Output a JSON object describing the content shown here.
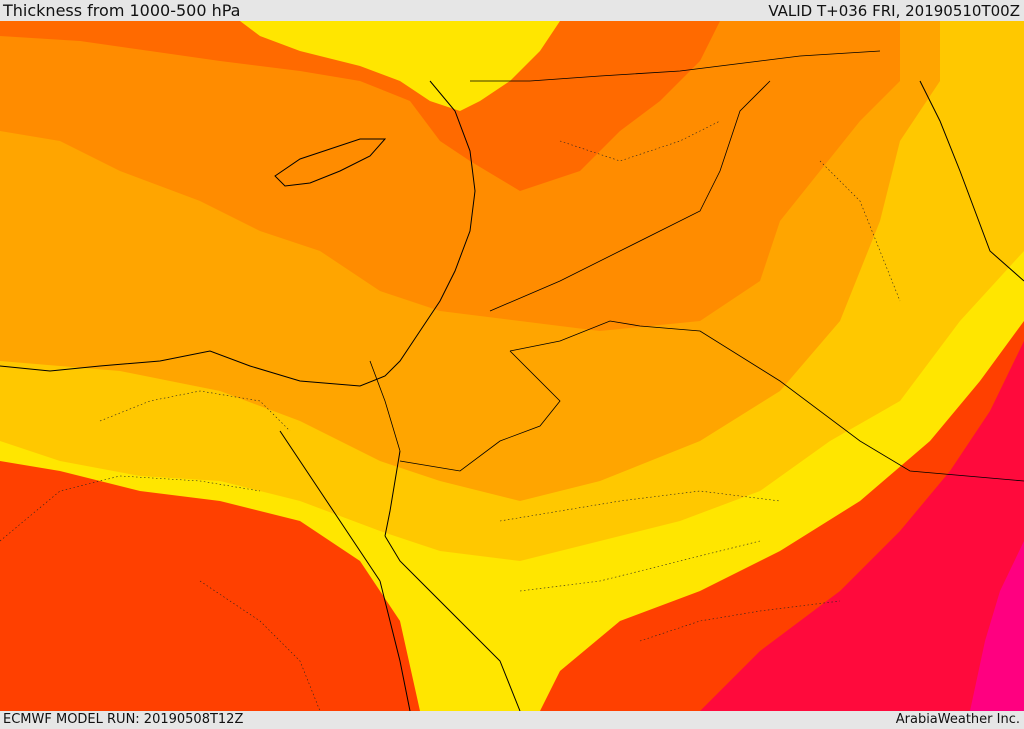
{
  "header": {
    "title": "Thickness from 1000-500 hPa",
    "valid": "VALID T+036 FRI, 20190510T00Z"
  },
  "footer": {
    "model_run": "ECMWF MODEL RUN: 20190508T12Z",
    "credit": "ArabiaWeather Inc."
  },
  "map": {
    "field": "thickness-1000-500hPa",
    "colors": {
      "band1": "#ffe600",
      "band2": "#ffc800",
      "band3": "#ffa500",
      "band4": "#ff8c00",
      "band5": "#ff6a00",
      "band6": "#ff4000",
      "band7": "#ff0a3c",
      "band8": "#ff0080",
      "coast": "#000000"
    }
  }
}
